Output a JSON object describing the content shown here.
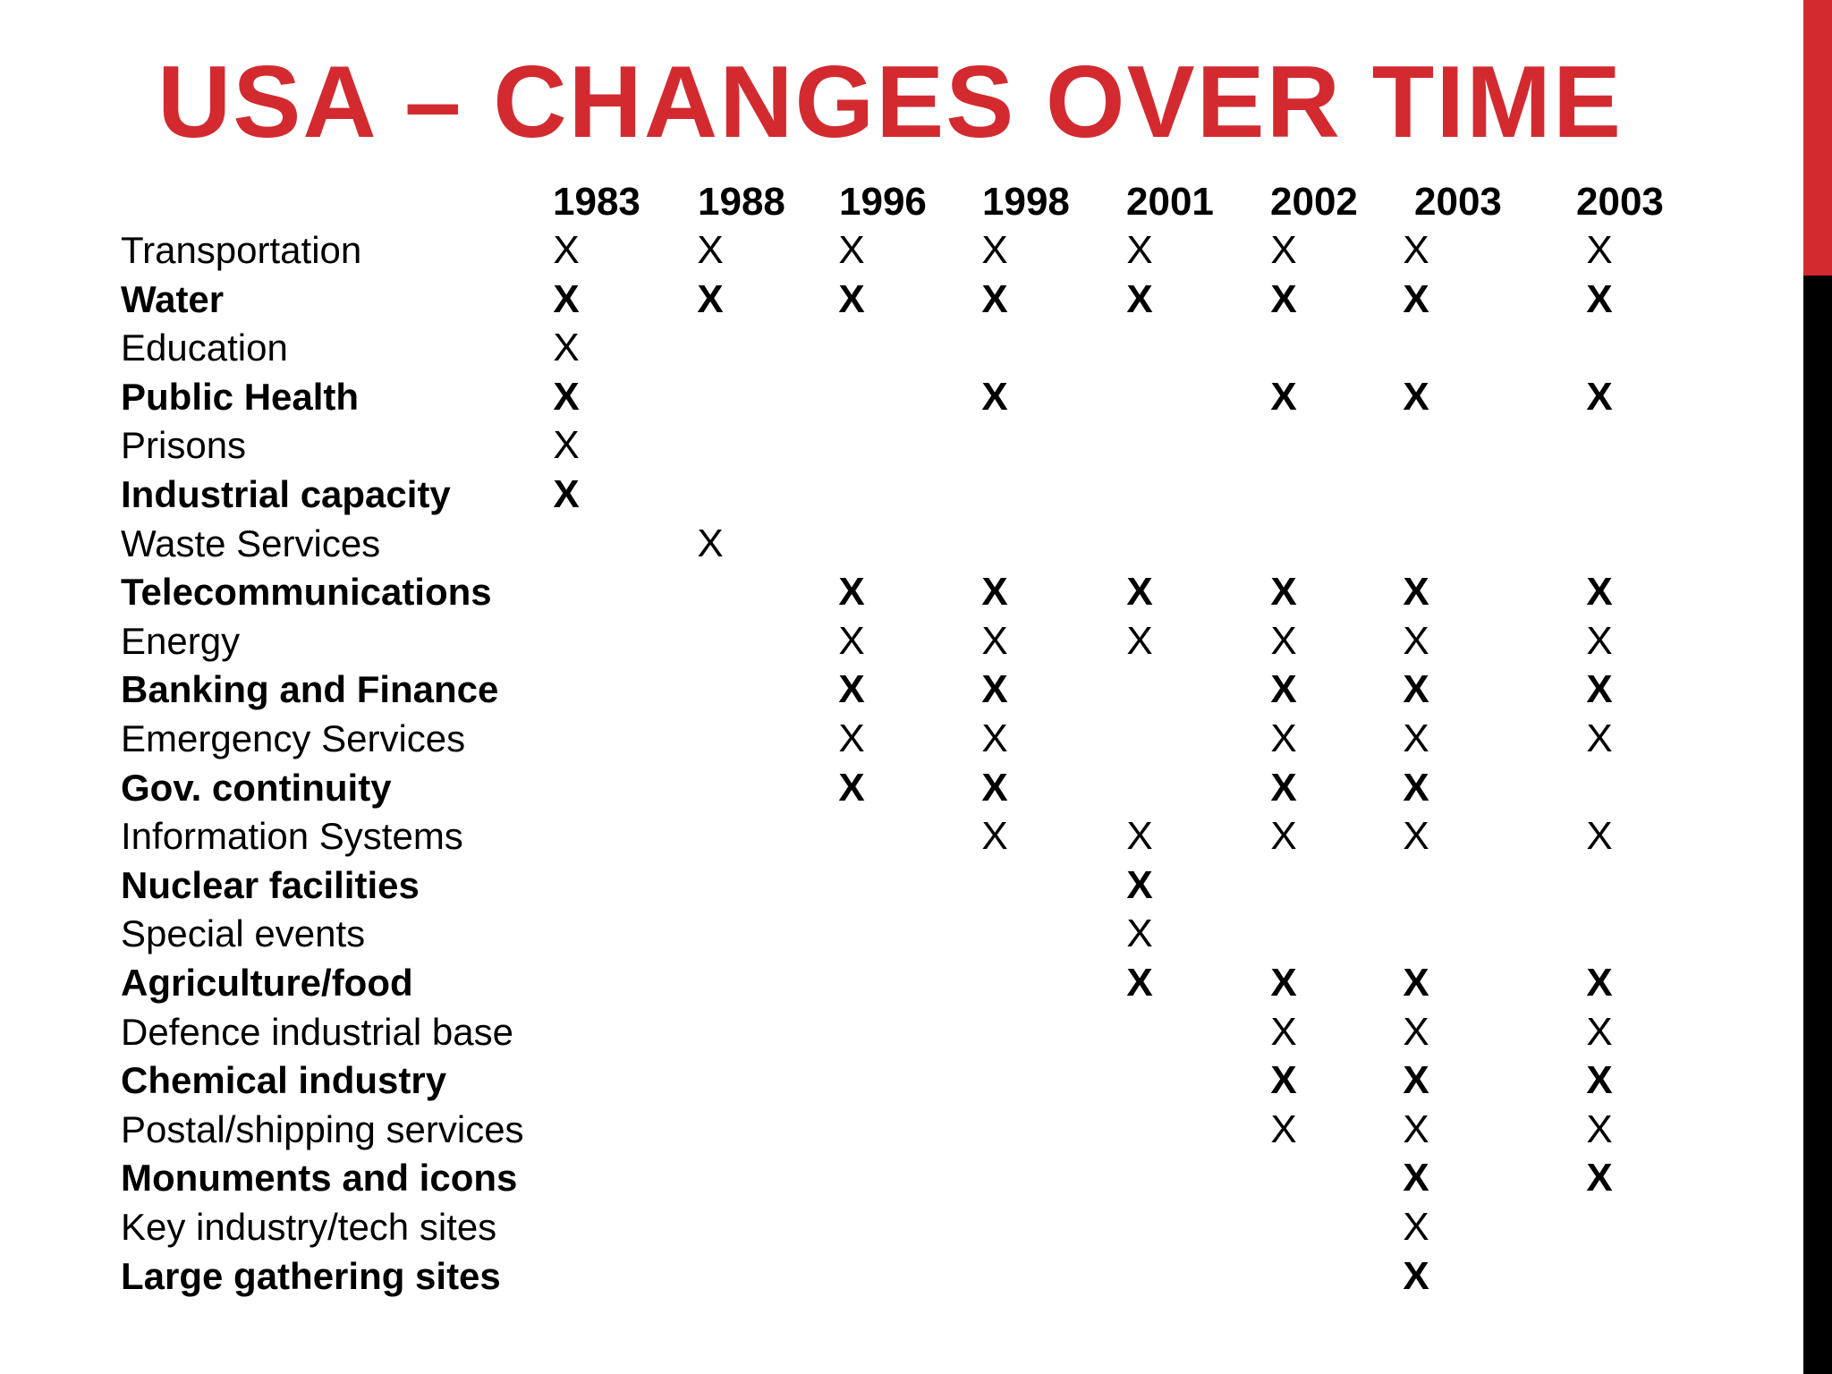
{
  "title": "USA – CHANGES OVER TIME",
  "colors": {
    "accent": "#D32A30",
    "side_bar_bottom": "#000000",
    "text": "#000000"
  },
  "years": [
    "1983",
    "1988",
    "1996",
    "1998",
    "2001",
    "2002",
    "2003",
    "2003"
  ],
  "mark_symbol": "X",
  "rows": [
    {
      "label": "Transportation",
      "bold": false,
      "marks": [
        1,
        1,
        1,
        1,
        1,
        1,
        1,
        1
      ]
    },
    {
      "label": "Water",
      "bold": true,
      "marks": [
        1,
        1,
        1,
        1,
        1,
        1,
        1,
        1
      ]
    },
    {
      "label": "Education",
      "bold": false,
      "marks": [
        1,
        0,
        0,
        0,
        0,
        0,
        0,
        0
      ]
    },
    {
      "label": "Public Health",
      "bold": true,
      "marks": [
        1,
        0,
        0,
        1,
        0,
        1,
        1,
        1
      ]
    },
    {
      "label": "Prisons",
      "bold": false,
      "marks": [
        1,
        0,
        0,
        0,
        0,
        0,
        0,
        0
      ]
    },
    {
      "label": "Industrial capacity",
      "bold": true,
      "marks": [
        1,
        0,
        0,
        0,
        0,
        0,
        0,
        0
      ]
    },
    {
      "label": "Waste Services",
      "bold": false,
      "marks": [
        0,
        1,
        0,
        0,
        0,
        0,
        0,
        0
      ]
    },
    {
      "label": "Telecommunications",
      "bold": true,
      "marks": [
        0,
        0,
        1,
        1,
        1,
        1,
        1,
        1
      ]
    },
    {
      "label": "Energy",
      "bold": false,
      "marks": [
        0,
        0,
        1,
        1,
        1,
        1,
        1,
        1
      ]
    },
    {
      "label": "Banking and Finance",
      "bold": true,
      "marks": [
        0,
        0,
        1,
        1,
        0,
        1,
        1,
        1
      ]
    },
    {
      "label": "Emergency Services",
      "bold": false,
      "marks": [
        0,
        0,
        1,
        1,
        0,
        1,
        1,
        1
      ]
    },
    {
      "label": "Gov. continuity",
      "bold": true,
      "marks": [
        0,
        0,
        1,
        1,
        0,
        1,
        1,
        0
      ]
    },
    {
      "label": "Information Systems",
      "bold": false,
      "marks": [
        0,
        0,
        0,
        1,
        1,
        1,
        1,
        1
      ]
    },
    {
      "label": "Nuclear facilities",
      "bold": true,
      "marks": [
        0,
        0,
        0,
        0,
        1,
        0,
        0,
        0
      ]
    },
    {
      "label": "Special events",
      "bold": false,
      "marks": [
        0,
        0,
        0,
        0,
        1,
        0,
        0,
        0
      ]
    },
    {
      "label": "Agriculture/food",
      "bold": true,
      "marks": [
        0,
        0,
        0,
        0,
        1,
        1,
        1,
        1
      ]
    },
    {
      "label": "Defence industrial base",
      "bold": false,
      "marks": [
        0,
        0,
        0,
        0,
        0,
        1,
        1,
        1
      ]
    },
    {
      "label": "Chemical industry",
      "bold": true,
      "marks": [
        0,
        0,
        0,
        0,
        0,
        1,
        1,
        1
      ]
    },
    {
      "label": "Postal/shipping services",
      "bold": false,
      "marks": [
        0,
        0,
        0,
        0,
        0,
        1,
        1,
        1
      ]
    },
    {
      "label": "Monuments and icons",
      "bold": true,
      "marks": [
        0,
        0,
        0,
        0,
        0,
        0,
        1,
        1
      ]
    },
    {
      "label": "Key industry/tech sites",
      "bold": false,
      "marks": [
        0,
        0,
        0,
        0,
        0,
        0,
        1,
        0
      ]
    },
    {
      "label": "Large gathering sites",
      "bold": true,
      "marks": [
        0,
        0,
        0,
        0,
        0,
        0,
        1,
        0
      ]
    }
  ]
}
